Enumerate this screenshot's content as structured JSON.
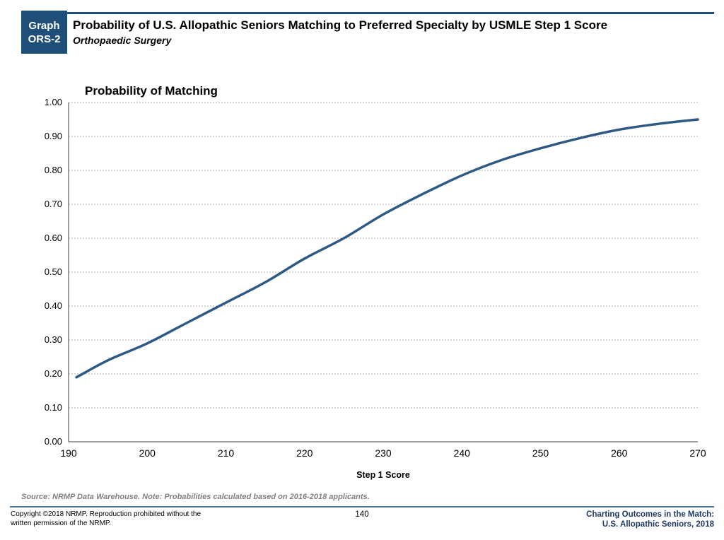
{
  "header": {
    "badge_line1": "Graph",
    "badge_line2": "ORS-2",
    "title": "Probability of U.S. Allopathic Seniors Matching to Preferred Specialty by USMLE Step 1 Score",
    "subtitle": "Orthopaedic Surgery"
  },
  "chart_data": {
    "type": "line",
    "title": "Probability of Matching",
    "xlabel": "Step 1 Score",
    "ylabel": "Probability of Matching",
    "x": [
      191,
      195,
      200,
      205,
      210,
      215,
      220,
      225,
      230,
      235,
      240,
      245,
      250,
      255,
      260,
      265,
      270
    ],
    "y": [
      0.19,
      0.24,
      0.29,
      0.35,
      0.41,
      0.47,
      0.54,
      0.6,
      0.67,
      0.73,
      0.785,
      0.83,
      0.865,
      0.895,
      0.92,
      0.937,
      0.95
    ],
    "xlim": [
      190,
      270
    ],
    "ylim": [
      0.0,
      1.0
    ],
    "x_ticks": [
      190,
      200,
      210,
      220,
      230,
      240,
      250,
      260,
      270
    ],
    "y_ticks": [
      "0.00",
      "0.10",
      "0.20",
      "0.30",
      "0.40",
      "0.50",
      "0.60",
      "0.70",
      "0.80",
      "0.90",
      "1.00"
    ],
    "grid": true,
    "legend": "none"
  },
  "source_note": "Source: NRMP Data Warehouse. Note: Probabilities calculated based on 2016-2018 applicants.",
  "footer": {
    "copyright_line1": "Copyright ©2018 NRMP. Reproduction prohibited without the",
    "copyright_line2": "written permission of the NRMP.",
    "page_number": "140",
    "brand_line1": "Charting Outcomes in the Match:",
    "brand_line2": "U.S. Allopathic Seniors, 2018"
  },
  "colors": {
    "navy": "#1F4E79",
    "curve": "#2E5984",
    "grid": "#ADADAD",
    "axis": "#7F7F7F",
    "source_text": "#7F7F7F",
    "brand_text": "#1F3864",
    "footer_rule": "#41719C"
  }
}
